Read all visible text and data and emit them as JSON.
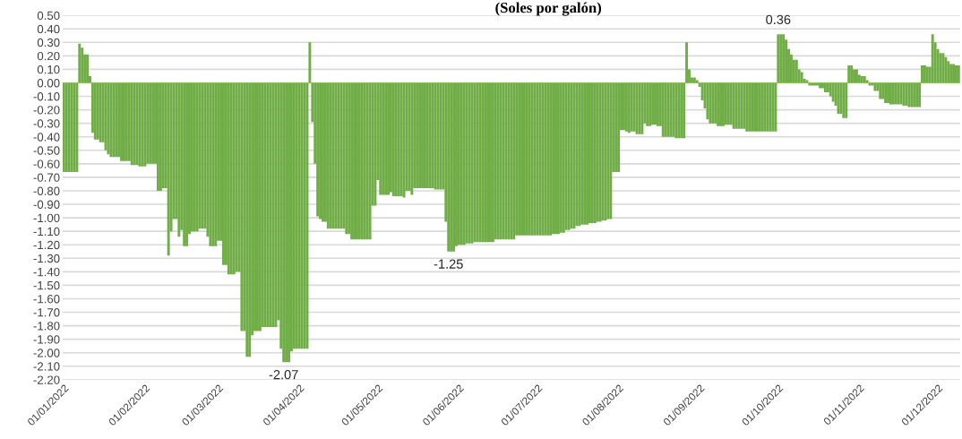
{
  "chart_data": {
    "type": "bar",
    "title": "(Soles por galón)",
    "color": "#70ad47",
    "x": [
      "2022-01-01",
      "2022-01-02",
      "2022-01-03",
      "2022-01-04",
      "2022-01-05",
      "2022-01-06",
      "2022-01-07",
      "2022-01-08",
      "2022-01-09",
      "2022-01-10",
      "2022-01-11",
      "2022-01-12",
      "2022-01-13",
      "2022-01-14",
      "2022-01-15",
      "2022-01-16",
      "2022-01-17",
      "2022-01-18",
      "2022-01-19",
      "2022-01-20",
      "2022-01-21",
      "2022-01-22",
      "2022-01-23",
      "2022-01-24",
      "2022-01-25",
      "2022-01-26",
      "2022-01-27",
      "2022-01-28",
      "2022-01-29",
      "2022-01-30",
      "2022-01-31",
      "2022-02-01",
      "2022-02-02",
      "2022-02-03",
      "2022-02-04",
      "2022-02-05",
      "2022-02-06",
      "2022-02-07",
      "2022-02-08",
      "2022-02-09",
      "2022-02-10",
      "2022-02-11",
      "2022-02-12",
      "2022-02-13",
      "2022-02-14",
      "2022-02-15",
      "2022-02-16",
      "2022-02-17",
      "2022-02-18",
      "2022-02-19",
      "2022-02-20",
      "2022-02-21",
      "2022-02-22",
      "2022-02-23",
      "2022-02-24",
      "2022-02-25",
      "2022-02-26",
      "2022-02-27",
      "2022-02-28",
      "2022-03-01",
      "2022-03-02",
      "2022-03-03",
      "2022-03-04",
      "2022-03-05",
      "2022-03-06",
      "2022-03-07",
      "2022-03-08",
      "2022-03-09",
      "2022-03-10",
      "2022-03-11",
      "2022-03-12",
      "2022-03-13",
      "2022-03-14",
      "2022-03-15",
      "2022-03-16",
      "2022-03-17",
      "2022-03-18",
      "2022-03-19",
      "2022-03-20",
      "2022-03-21",
      "2022-03-22",
      "2022-03-23",
      "2022-03-24",
      "2022-03-25",
      "2022-03-26",
      "2022-03-27",
      "2022-03-28",
      "2022-03-29",
      "2022-03-30",
      "2022-03-31",
      "2022-04-01",
      "2022-04-02",
      "2022-04-03",
      "2022-04-04",
      "2022-04-05",
      "2022-04-06",
      "2022-04-07",
      "2022-04-08",
      "2022-04-09",
      "2022-04-10",
      "2022-04-11",
      "2022-04-12",
      "2022-04-13",
      "2022-04-14",
      "2022-04-15",
      "2022-04-16",
      "2022-04-17",
      "2022-04-18",
      "2022-04-19",
      "2022-04-20",
      "2022-04-21",
      "2022-04-22",
      "2022-04-23",
      "2022-04-24",
      "2022-04-25",
      "2022-04-26",
      "2022-04-27",
      "2022-04-28",
      "2022-04-29",
      "2022-04-30",
      "2022-05-01",
      "2022-05-02",
      "2022-05-03",
      "2022-05-04",
      "2022-05-05",
      "2022-05-06",
      "2022-05-07",
      "2022-05-08",
      "2022-05-09",
      "2022-05-10",
      "2022-05-11",
      "2022-05-12",
      "2022-05-13",
      "2022-05-14",
      "2022-05-15",
      "2022-05-16",
      "2022-05-17",
      "2022-05-18",
      "2022-05-19",
      "2022-05-20",
      "2022-05-21",
      "2022-05-22",
      "2022-05-23",
      "2022-05-24",
      "2022-05-25",
      "2022-05-26",
      "2022-05-27",
      "2022-05-28",
      "2022-05-29",
      "2022-05-30",
      "2022-05-31",
      "2022-06-01",
      "2022-06-02",
      "2022-06-03",
      "2022-06-04",
      "2022-06-05",
      "2022-06-06",
      "2022-06-07",
      "2022-06-08",
      "2022-06-09",
      "2022-06-10",
      "2022-06-11",
      "2022-06-12",
      "2022-06-13",
      "2022-06-14",
      "2022-06-15",
      "2022-06-16",
      "2022-06-17",
      "2022-06-18",
      "2022-06-19",
      "2022-06-20",
      "2022-06-21",
      "2022-06-22",
      "2022-06-23",
      "2022-06-24",
      "2022-06-25",
      "2022-06-26",
      "2022-06-27",
      "2022-06-28",
      "2022-06-29",
      "2022-06-30",
      "2022-07-01",
      "2022-07-02",
      "2022-07-03",
      "2022-07-04",
      "2022-07-05",
      "2022-07-06",
      "2022-07-07",
      "2022-07-08",
      "2022-07-09",
      "2022-07-10",
      "2022-07-11",
      "2022-07-12",
      "2022-07-13",
      "2022-07-14",
      "2022-07-15",
      "2022-07-16",
      "2022-07-17",
      "2022-07-18",
      "2022-07-19",
      "2022-07-20",
      "2022-07-21",
      "2022-07-22",
      "2022-07-23",
      "2022-07-24",
      "2022-07-25",
      "2022-07-26",
      "2022-07-27",
      "2022-07-28",
      "2022-07-29",
      "2022-07-30",
      "2022-07-31",
      "2022-08-01",
      "2022-08-02",
      "2022-08-03",
      "2022-08-04",
      "2022-08-05",
      "2022-08-06",
      "2022-08-07",
      "2022-08-08",
      "2022-08-09",
      "2022-08-10",
      "2022-08-11",
      "2022-08-12",
      "2022-08-13",
      "2022-08-14",
      "2022-08-15",
      "2022-08-16",
      "2022-08-17",
      "2022-08-18",
      "2022-08-19",
      "2022-08-20",
      "2022-08-21",
      "2022-08-22",
      "2022-08-23",
      "2022-08-24",
      "2022-08-25",
      "2022-08-26",
      "2022-08-27",
      "2022-08-28",
      "2022-08-29",
      "2022-08-30",
      "2022-08-31",
      "2022-09-01",
      "2022-09-02",
      "2022-09-03",
      "2022-09-04",
      "2022-09-05",
      "2022-09-06",
      "2022-09-07",
      "2022-09-08",
      "2022-09-09",
      "2022-09-10",
      "2022-09-11",
      "2022-09-12",
      "2022-09-13",
      "2022-09-14",
      "2022-09-15",
      "2022-09-16",
      "2022-09-17",
      "2022-09-18",
      "2022-09-19",
      "2022-09-20",
      "2022-09-21",
      "2022-09-22",
      "2022-09-23",
      "2022-09-24",
      "2022-09-25",
      "2022-09-26",
      "2022-09-27",
      "2022-09-28",
      "2022-09-29",
      "2022-09-30",
      "2022-10-01",
      "2022-10-02",
      "2022-10-03",
      "2022-10-04",
      "2022-10-05",
      "2022-10-06",
      "2022-10-07",
      "2022-10-08",
      "2022-10-09",
      "2022-10-10",
      "2022-10-11",
      "2022-10-12",
      "2022-10-13",
      "2022-10-14",
      "2022-10-15",
      "2022-10-16",
      "2022-10-17",
      "2022-10-18",
      "2022-10-19",
      "2022-10-20",
      "2022-10-21",
      "2022-10-22",
      "2022-10-23",
      "2022-10-24",
      "2022-10-25",
      "2022-10-26",
      "2022-10-27",
      "2022-10-28",
      "2022-10-29",
      "2022-10-30",
      "2022-10-31",
      "2022-11-01",
      "2022-11-02",
      "2022-11-03",
      "2022-11-04",
      "2022-11-05",
      "2022-11-06",
      "2022-11-07",
      "2022-11-08",
      "2022-11-09",
      "2022-11-10",
      "2022-11-11",
      "2022-11-12",
      "2022-11-13",
      "2022-11-14",
      "2022-11-15",
      "2022-11-16",
      "2022-11-17",
      "2022-11-18",
      "2022-11-19",
      "2022-11-20",
      "2022-11-21",
      "2022-11-22",
      "2022-11-23",
      "2022-11-24",
      "2022-11-25",
      "2022-11-26",
      "2022-11-27",
      "2022-11-28",
      "2022-11-29",
      "2022-11-30",
      "2022-12-01",
      "2022-12-02",
      "2022-12-03",
      "2022-12-04",
      "2022-12-05",
      "2022-12-06",
      "2022-12-07",
      "2022-12-08",
      "2022-12-09"
    ],
    "ref_lines": [
      {
        "axis": "y",
        "value": 0,
        "color": "#a9d18e"
      }
    ],
    "values": [
      -0.66,
      -0.66,
      -0.66,
      -0.66,
      -0.66,
      -0.66,
      0.29,
      0.26,
      0.21,
      0.21,
      0.05,
      -0.37,
      -0.42,
      -0.42,
      -0.44,
      -0.44,
      -0.5,
      -0.53,
      -0.55,
      -0.55,
      -0.55,
      -0.55,
      -0.58,
      -0.58,
      -0.58,
      -0.58,
      -0.61,
      -0.61,
      -0.61,
      -0.62,
      -0.62,
      -0.62,
      -0.6,
      -0.6,
      -0.6,
      -0.6,
      -0.8,
      -0.8,
      -0.78,
      -0.78,
      -1.28,
      -1.1,
      -1.01,
      -1.01,
      -1.14,
      -1.09,
      -1.21,
      -1.21,
      -1.12,
      -1.1,
      -1.1,
      -1.1,
      -1.08,
      -1.08,
      -1.08,
      -1.14,
      -1.21,
      -1.21,
      -1.21,
      -1.17,
      -1.17,
      -1.35,
      -1.35,
      -1.42,
      -1.42,
      -1.42,
      -1.4,
      -1.4,
      -1.84,
      -1.84,
      -2.03,
      -2.03,
      -1.87,
      -1.84,
      -1.84,
      -1.84,
      -1.81,
      -1.81,
      -1.81,
      -1.81,
      -1.81,
      -1.81,
      -1.76,
      -1.97,
      -2.07,
      -2.07,
      -2.07,
      -1.99,
      -1.97,
      -1.97,
      -1.97,
      -1.97,
      -1.97,
      -1.97,
      0.3,
      -0.29,
      -0.6,
      -0.99,
      -1.01,
      -1.03,
      -1.03,
      -1.08,
      -1.08,
      -1.08,
      -1.08,
      -1.08,
      -1.08,
      -1.08,
      -1.12,
      -1.12,
      -1.16,
      -1.16,
      -1.16,
      -1.16,
      -1.16,
      -1.16,
      -1.16,
      -1.16,
      -0.91,
      -0.91,
      -0.72,
      -0.83,
      -0.83,
      -0.83,
      -0.83,
      -0.81,
      -0.84,
      -0.84,
      -0.84,
      -0.84,
      -0.85,
      -0.8,
      -0.8,
      -0.83,
      -0.78,
      -0.78,
      -0.78,
      -0.78,
      -0.78,
      -0.78,
      -0.78,
      -0.78,
      -0.79,
      -0.79,
      -0.79,
      -0.79,
      -1.03,
      -1.25,
      -1.25,
      -1.25,
      -1.21,
      -1.2,
      -1.2,
      -1.2,
      -1.19,
      -1.19,
      -1.19,
      -1.18,
      -1.18,
      -1.18,
      -1.18,
      -1.18,
      -1.18,
      -1.18,
      -1.18,
      -1.16,
      -1.16,
      -1.16,
      -1.16,
      -1.16,
      -1.16,
      -1.16,
      -1.16,
      -1.13,
      -1.13,
      -1.13,
      -1.13,
      -1.13,
      -1.13,
      -1.13,
      -1.13,
      -1.13,
      -1.13,
      -1.13,
      -1.13,
      -1.13,
      -1.13,
      -1.12,
      -1.12,
      -1.12,
      -1.11,
      -1.11,
      -1.09,
      -1.09,
      -1.08,
      -1.08,
      -1.06,
      -1.06,
      -1.05,
      -1.05,
      -1.05,
      -1.04,
      -1.04,
      -1.04,
      -1.03,
      -1.03,
      -1.02,
      -1.02,
      -1.01,
      -1.01,
      -0.66,
      -0.66,
      -0.66,
      -0.35,
      -0.35,
      -0.36,
      -0.37,
      -0.36,
      -0.36,
      -0.38,
      -0.38,
      -0.38,
      -0.3,
      -0.32,
      -0.32,
      -0.31,
      -0.31,
      -0.32,
      -0.32,
      -0.4,
      -0.4,
      -0.4,
      -0.4,
      -0.4,
      -0.41,
      -0.41,
      -0.41,
      -0.41,
      0.3,
      0.1,
      0.04,
      0.04,
      0.02,
      -0.03,
      -0.13,
      -0.19,
      -0.27,
      -0.3,
      -0.3,
      -0.3,
      -0.32,
      -0.32,
      -0.32,
      -0.31,
      -0.31,
      -0.31,
      -0.34,
      -0.34,
      -0.34,
      -0.34,
      -0.34,
      -0.36,
      -0.36,
      -0.36,
      -0.36,
      -0.36,
      -0.36,
      -0.36,
      -0.36,
      -0.36,
      -0.36,
      -0.36,
      -0.36,
      0.36,
      0.36,
      0.36,
      0.32,
      0.25,
      0.21,
      0.17,
      0.17,
      0.1,
      0.08,
      0.03,
      0.02,
      -0.02,
      -0.02,
      -0.02,
      -0.02,
      -0.04,
      -0.04,
      -0.07,
      -0.07,
      -0.1,
      -0.14,
      -0.17,
      -0.23,
      -0.23,
      -0.26,
      -0.26,
      0.13,
      0.13,
      0.1,
      0.1,
      0.06,
      0.05,
      0.05,
      0.02,
      -0.02,
      -0.02,
      -0.06,
      -0.06,
      -0.12,
      -0.12,
      -0.15,
      -0.15,
      -0.16,
      -0.16,
      -0.16,
      -0.16,
      -0.16,
      -0.17,
      -0.17,
      -0.18,
      -0.18,
      -0.18,
      -0.18,
      -0.18,
      0.13,
      0.13,
      0.12,
      0.12,
      0.36,
      0.3,
      0.25,
      0.22,
      0.22,
      0.19,
      0.16,
      0.14,
      0.14,
      0.13,
      0.13
    ],
    "xlim": [
      "2021-12-31T12:00",
      "2022-12-09T12:00"
    ],
    "xticks": [
      {
        "value": "2022-01-01",
        "label": "01/01/2022"
      },
      {
        "value": "2022-02-01",
        "label": "01/02/2022"
      },
      {
        "value": "2022-03-01",
        "label": "01/03/2022"
      },
      {
        "value": "2022-04-01",
        "label": "01/04/2022"
      },
      {
        "value": "2022-05-01",
        "label": "01/05/2022"
      },
      {
        "value": "2022-06-01",
        "label": "01/06/2022"
      },
      {
        "value": "2022-07-01",
        "label": "01/07/2022"
      },
      {
        "value": "2022-08-01",
        "label": "01/08/2022"
      },
      {
        "value": "2022-09-01",
        "label": "01/09/2022"
      },
      {
        "value": "2022-10-01",
        "label": "01/10/2022"
      },
      {
        "value": "2022-11-01",
        "label": "01/11/2022"
      },
      {
        "value": "2022-12-01",
        "label": "01/12/2022"
      }
    ],
    "ylim": [
      -2.2,
      0.5
    ],
    "yticks": [
      {
        "value": 0.5,
        "label": "0.50"
      },
      {
        "value": 0.4,
        "label": "0.40"
      },
      {
        "value": 0.3,
        "label": "0.30"
      },
      {
        "value": 0.2,
        "label": "0.20"
      },
      {
        "value": 0.1,
        "label": "0.10"
      },
      {
        "value": 0,
        "label": "0.00"
      },
      {
        "value": -0.1,
        "label": "-0.10"
      },
      {
        "value": -0.2,
        "label": "-0.20"
      },
      {
        "value": -0.3,
        "label": "-0.30"
      },
      {
        "value": -0.4,
        "label": "-0.40"
      },
      {
        "value": -0.5,
        "label": "-0.50"
      },
      {
        "value": -0.6,
        "label": "-0.60"
      },
      {
        "value": -0.7,
        "label": "-0.70"
      },
      {
        "value": -0.8,
        "label": "-0.80"
      },
      {
        "value": -0.9,
        "label": "-0.90"
      },
      {
        "value": -1.0,
        "label": "-1.00"
      },
      {
        "value": -1.1,
        "label": "-1.10"
      },
      {
        "value": -1.2,
        "label": "-1.20"
      },
      {
        "value": -1.3,
        "label": "-1.30"
      },
      {
        "value": -1.4,
        "label": "-1.40"
      },
      {
        "value": -1.5,
        "label": "-1.50"
      },
      {
        "value": -1.6,
        "label": "-1.60"
      },
      {
        "value": -1.7,
        "label": "-1.70"
      },
      {
        "value": -1.8,
        "label": "-1.80"
      },
      {
        "value": -1.9,
        "label": "-1.90"
      },
      {
        "value": -2.0,
        "label": "-2.00"
      },
      {
        "value": -2.1,
        "label": "-2.10"
      },
      {
        "value": -2.2,
        "label": "-2.20"
      }
    ],
    "grid": "y",
    "annotations": [
      {
        "text": "-2.07",
        "x": "2022-03-26",
        "y": -2.07
      },
      {
        "text": "-1.25",
        "x": "2022-05-28",
        "y": -1.25
      },
      {
        "text": "0.36",
        "x": "2022-10-01",
        "y": 0.36
      }
    ]
  }
}
